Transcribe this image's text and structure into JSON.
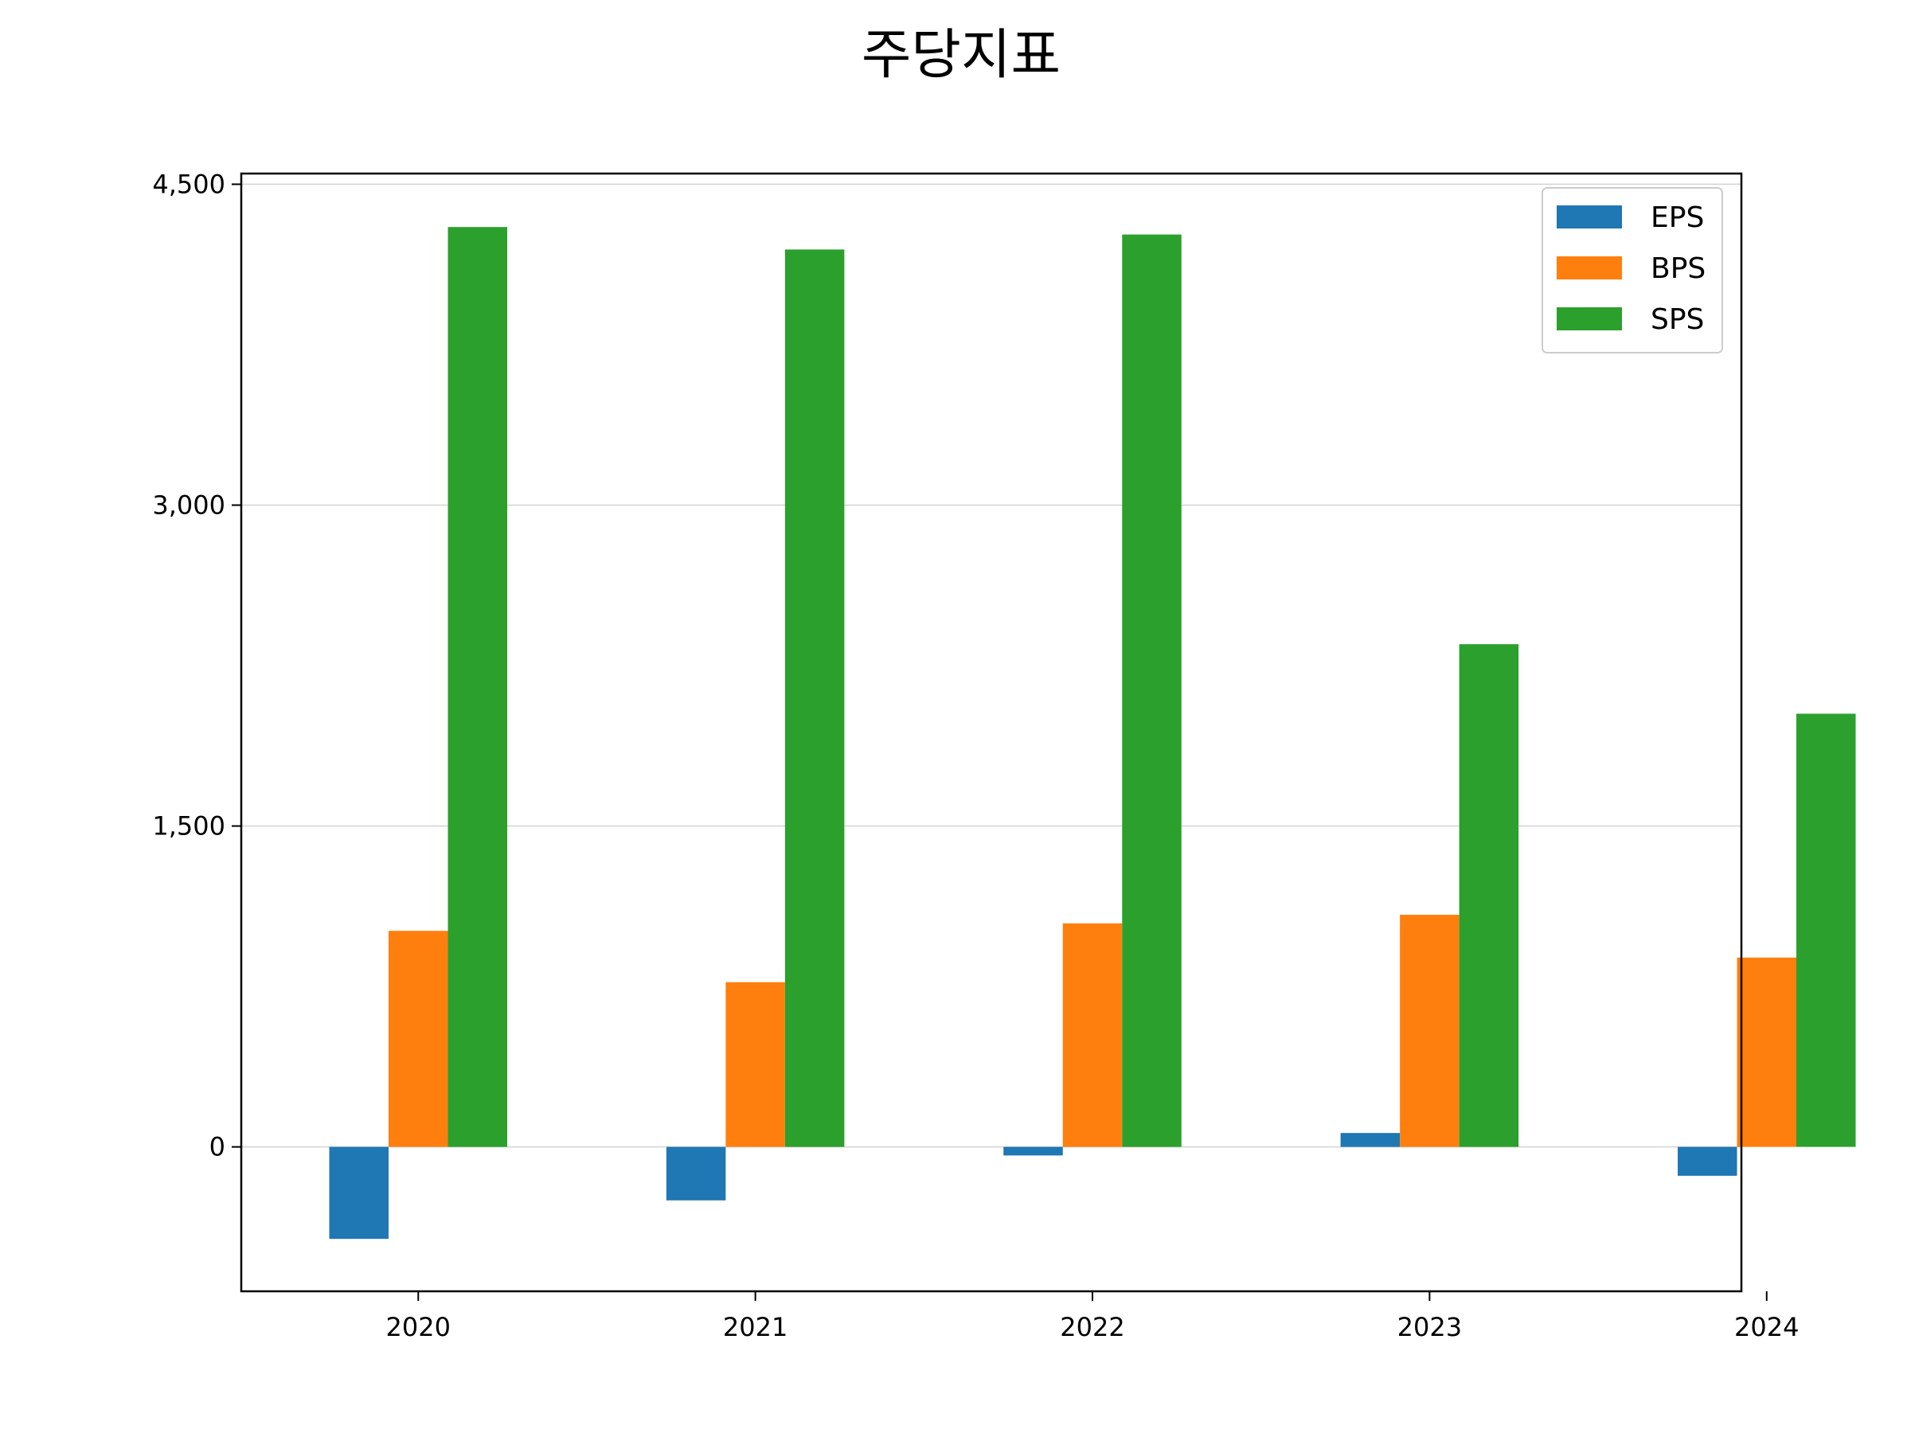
{
  "chart_data": {
    "type": "bar",
    "title": "주당지표",
    "xlabel": "",
    "ylabel": "",
    "categories": [
      "2020",
      "2021",
      "2022",
      "2023",
      "2024"
    ],
    "series": [
      {
        "name": "EPS",
        "color": "#1f77b4",
        "values": [
          -430,
          -250,
          -40,
          65,
          -135
        ]
      },
      {
        "name": "BPS",
        "color": "#ff7f0e",
        "values": [
          1010,
          770,
          1045,
          1085,
          885
        ]
      },
      {
        "name": "SPS",
        "color": "#2ca02c",
        "values": [
          4300,
          4195,
          4265,
          2350,
          2025
        ]
      }
    ],
    "ylim": [
      -675,
      4550
    ],
    "yticks": [
      0,
      1500,
      3000,
      4500
    ],
    "ytick_labels": [
      "0",
      "1,500",
      "3,000",
      "4,500"
    ],
    "grid": "horizontal",
    "legend_position": "top-right"
  }
}
